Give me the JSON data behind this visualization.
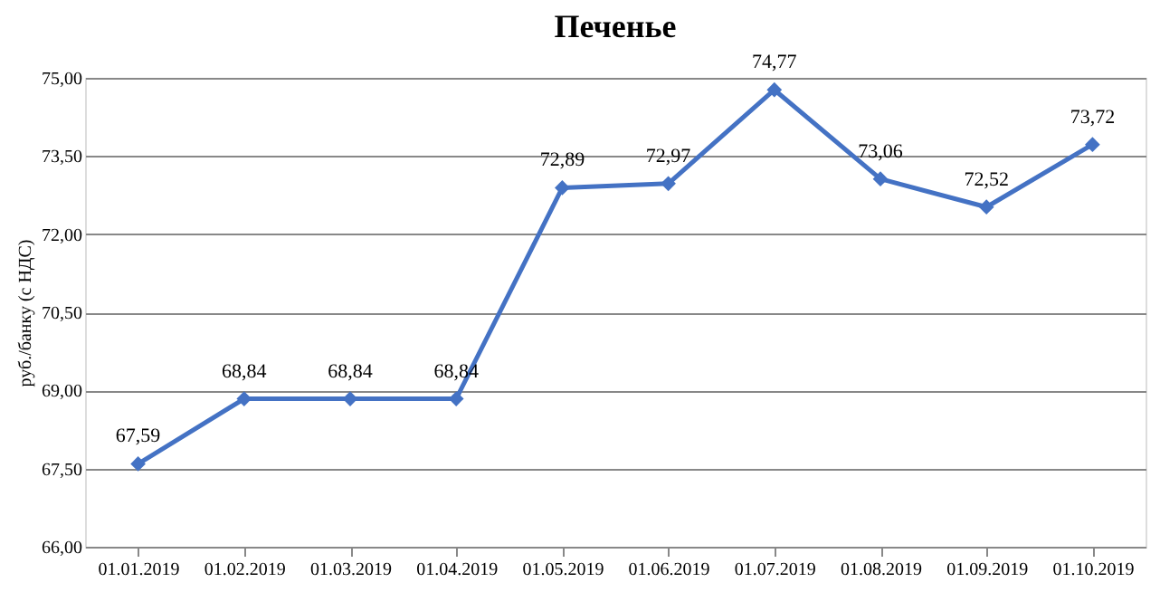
{
  "chart_data": {
    "type": "line",
    "title": "Печенье",
    "ylabel": "руб./банку (с НДС)",
    "categories": [
      "01.01.2019",
      "01.02.2019",
      "01.03.2019",
      "01.04.2019",
      "01.05.2019",
      "01.06.2019",
      "01.07.2019",
      "01.08.2019",
      "01.09.2019",
      "01.10.2019"
    ],
    "series": [
      {
        "color": "#4472c4",
        "values": [
          67.59,
          68.84,
          68.84,
          68.84,
          72.89,
          72.97,
          74.77,
          73.06,
          72.52,
          73.72
        ],
        "value_labels": [
          "67,59",
          "68,84",
          "68,84",
          "68,84",
          "72,89",
          "72,97",
          "74,77",
          "73,06",
          "72,52",
          "73,72"
        ]
      }
    ],
    "ylim": [
      66,
      75
    ],
    "yticks": [
      {
        "value": 66,
        "label": "66,00"
      },
      {
        "value": 67.5,
        "label": "67,50"
      },
      {
        "value": 69,
        "label": "69,00"
      },
      {
        "value": 70.5,
        "label": "70,50"
      },
      {
        "value": 72,
        "label": "72,00"
      },
      {
        "value": 73.5,
        "label": "73,50"
      },
      {
        "value": 75,
        "label": "75,00"
      }
    ],
    "grid": "y",
    "marker": "diamond",
    "line_style": "solid"
  }
}
